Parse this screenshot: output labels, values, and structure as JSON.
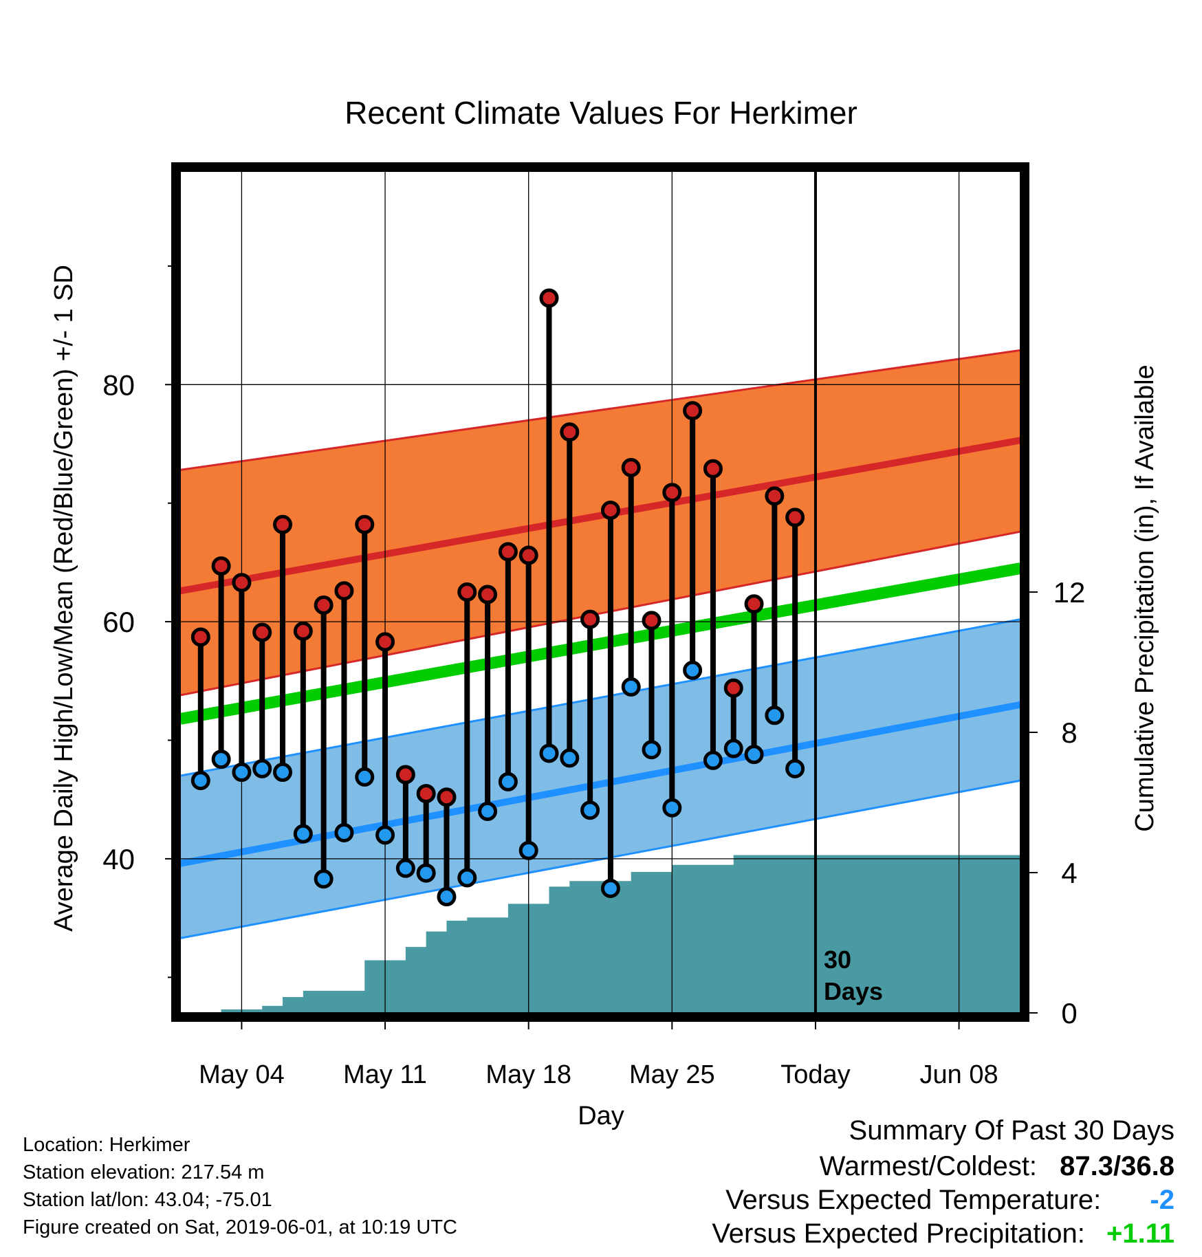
{
  "chart_data": {
    "type": "line",
    "title": "Recent Climate Values For Herkimer",
    "xlabel": "Day",
    "ylabel": "Average Daily High/Low/Mean (Red/Blue/Green) +/- 1 SD",
    "y2label": "Cumulative Precipitation (in), If Available",
    "xlim": [
      "2019-05-01",
      "2019-06-11"
    ],
    "ylim": [
      27,
      98
    ],
    "y2lim": [
      0,
      24
    ],
    "x_ticks": [
      {
        "date": "2019-05-04",
        "label": "May 04"
      },
      {
        "date": "2019-05-11",
        "label": "May 11"
      },
      {
        "date": "2019-05-18",
        "label": "May 18"
      },
      {
        "date": "2019-05-25",
        "label": "May 25"
      },
      {
        "date": "2019-06-01",
        "label": "Today"
      },
      {
        "date": "2019-06-08",
        "label": "Jun 08"
      }
    ],
    "y_ticks": [
      40,
      60,
      80
    ],
    "y_minor_ticks": [
      30,
      50,
      70,
      90
    ],
    "y2_ticks": [
      0,
      4,
      8,
      12
    ],
    "grid": true,
    "today_marker": {
      "date": "2019-06-01",
      "label_line1": "30",
      "label_line2": "Days"
    },
    "normals": {
      "dates": [
        "2019-05-01",
        "2019-06-11"
      ],
      "high_mean": [
        62.6,
        75.3
      ],
      "high_upper": [
        72.8,
        82.9
      ],
      "high_lower": [
        53.8,
        67.6
      ],
      "mean": [
        51.8,
        64.5
      ],
      "low_mean": [
        39.6,
        53.0
      ],
      "low_upper": [
        47.0,
        60.2
      ],
      "low_lower": [
        33.3,
        46.6
      ]
    },
    "series": [
      {
        "name": "High",
        "dates": [
          "2019-05-02",
          "2019-05-03",
          "2019-05-04",
          "2019-05-05",
          "2019-05-06",
          "2019-05-07",
          "2019-05-08",
          "2019-05-09",
          "2019-05-10",
          "2019-05-11",
          "2019-05-12",
          "2019-05-13",
          "2019-05-14",
          "2019-05-15",
          "2019-05-16",
          "2019-05-17",
          "2019-05-18",
          "2019-05-19",
          "2019-05-20",
          "2019-05-21",
          "2019-05-22",
          "2019-05-23",
          "2019-05-24",
          "2019-05-25",
          "2019-05-26",
          "2019-05-27",
          "2019-05-28",
          "2019-05-29",
          "2019-05-30",
          "2019-05-31"
        ],
        "values": [
          58.7,
          64.7,
          63.3,
          59.1,
          68.2,
          59.2,
          61.4,
          62.6,
          68.2,
          58.3,
          47.1,
          45.5,
          45.2,
          62.5,
          62.3,
          65.9,
          65.6,
          87.3,
          76.0,
          60.2,
          69.4,
          73.0,
          60.1,
          70.9,
          77.8,
          72.9,
          54.4,
          61.5,
          70.6,
          68.8
        ]
      },
      {
        "name": "Low",
        "dates": [
          "2019-05-02",
          "2019-05-03",
          "2019-05-04",
          "2019-05-05",
          "2019-05-06",
          "2019-05-07",
          "2019-05-08",
          "2019-05-09",
          "2019-05-10",
          "2019-05-11",
          "2019-05-12",
          "2019-05-13",
          "2019-05-14",
          "2019-05-15",
          "2019-05-16",
          "2019-05-17",
          "2019-05-18",
          "2019-05-19",
          "2019-05-20",
          "2019-05-21",
          "2019-05-22",
          "2019-05-23",
          "2019-05-24",
          "2019-05-25",
          "2019-05-26",
          "2019-05-27",
          "2019-05-28",
          "2019-05-29",
          "2019-05-30",
          "2019-05-31"
        ],
        "values": [
          46.6,
          48.4,
          47.3,
          47.6,
          47.3,
          42.1,
          38.3,
          42.2,
          46.9,
          42.0,
          39.2,
          38.8,
          36.8,
          38.4,
          44.0,
          46.5,
          40.7,
          48.9,
          48.5,
          44.1,
          37.5,
          54.5,
          49.2,
          44.3,
          55.9,
          48.3,
          49.3,
          48.8,
          52.1,
          47.6
        ]
      },
      {
        "name": "Cumulative Precipitation",
        "dates": [
          "2019-05-01",
          "2019-05-02",
          "2019-05-03",
          "2019-05-04",
          "2019-05-05",
          "2019-05-06",
          "2019-05-07",
          "2019-05-08",
          "2019-05-09",
          "2019-05-10",
          "2019-05-11",
          "2019-05-12",
          "2019-05-13",
          "2019-05-14",
          "2019-05-15",
          "2019-05-16",
          "2019-05-17",
          "2019-05-18",
          "2019-05-19",
          "2019-05-20",
          "2019-05-21",
          "2019-05-22",
          "2019-05-23",
          "2019-05-24",
          "2019-05-25",
          "2019-05-26",
          "2019-05-27",
          "2019-05-28",
          "2019-05-29",
          "2019-05-30",
          "2019-05-31",
          "2019-06-01",
          "2019-06-11"
        ],
        "values": [
          0.0,
          0.0,
          0.1,
          0.1,
          0.2,
          0.45,
          0.63,
          0.63,
          0.63,
          1.5,
          1.5,
          1.88,
          2.32,
          2.63,
          2.72,
          2.72,
          3.11,
          3.11,
          3.6,
          3.76,
          3.76,
          3.76,
          4.02,
          4.02,
          4.22,
          4.22,
          4.22,
          4.5,
          4.5,
          4.5,
          4.5,
          4.5,
          4.5
        ]
      }
    ]
  },
  "info": {
    "location": "Location: Herkimer",
    "elevation": "Station elevation: 217.54 m",
    "latlon": "Station lat/lon: 43.04; -75.01",
    "created": "Figure created on Sat, 2019-06-01, at 10:19 UTC"
  },
  "summary": {
    "heading": "Summary Of Past 30 Days",
    "warmest_label": "Warmest/Coldest:",
    "warmest_value": "87.3/36.8",
    "temp_label": "Versus Expected Temperature:",
    "temp_value": "-2",
    "precip_label": "Versus Expected Precipitation:",
    "precip_value": "+1.11",
    "temp_color": "#1e90ff",
    "precip_color": "#00cc00"
  },
  "colors": {
    "high_band": "#f47b35",
    "high_line": "#d62728",
    "mean_line": "#00cc00",
    "low_band": "#80bde6",
    "low_line": "#1e90ff",
    "precip": "#4a9aa3",
    "high_marker": "#cc2222",
    "low_marker": "#2299ee"
  }
}
